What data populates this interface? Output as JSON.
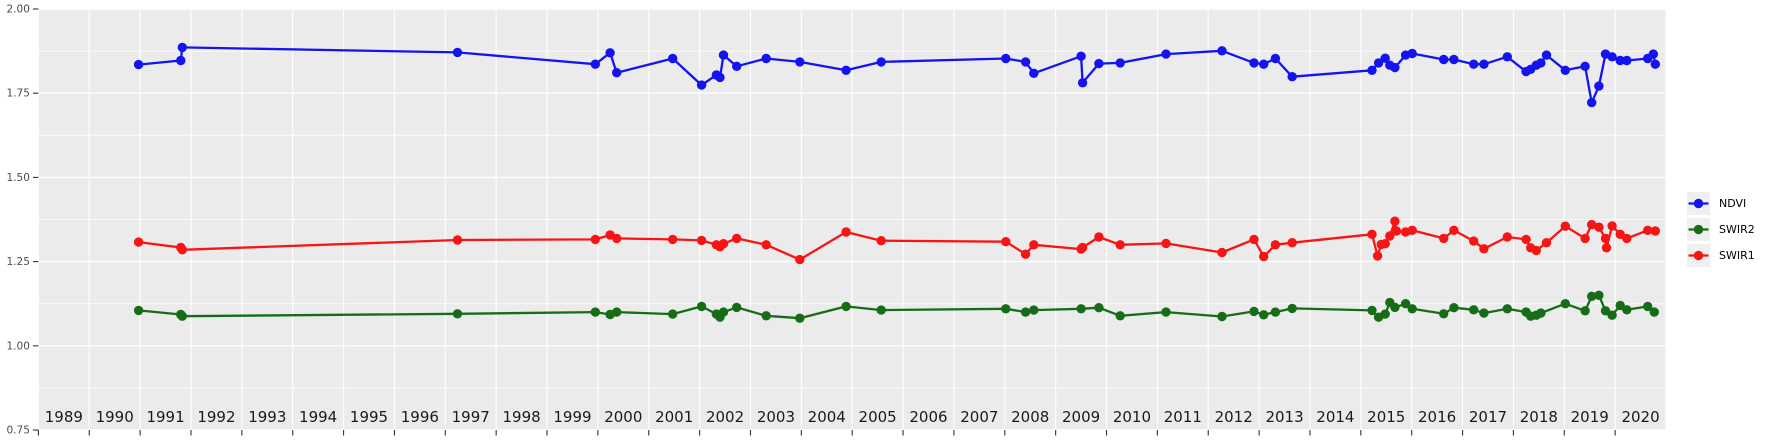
{
  "chart_data": {
    "type": "line",
    "title": "",
    "xlabel": "",
    "ylabel": "",
    "x_range": [
      1989,
      2021
    ],
    "y_range": [
      0.75,
      2.0
    ],
    "x_tick_years": [
      1989,
      1990,
      1991,
      1992,
      1993,
      1994,
      1995,
      1996,
      1997,
      1998,
      1999,
      2000,
      2001,
      2002,
      2003,
      2004,
      2005,
      2006,
      2007,
      2008,
      2009,
      2010,
      2011,
      2012,
      2013,
      2014,
      2015,
      2016,
      2017,
      2018,
      2019,
      2020
    ],
    "y_ticks": [
      0.75,
      1.0,
      1.25,
      1.5,
      1.75,
      2.0
    ],
    "y_tick_labels": [
      "0.75",
      "1.00",
      "1.25",
      "1.50",
      "1.75",
      "2.00"
    ],
    "y_major_step": 0.25,
    "y_minor_step": 0.125,
    "x_grid_step": 1,
    "grid": "on",
    "panel_color": "#EBEBEB",
    "grid_color": "#FFFFFF",
    "tick_color": "#333333",
    "x_label_color": "#1a1a1a",
    "y_label_color": "#4d4d4d",
    "legend": {
      "position": "right",
      "key_fill": "#EFEFEF",
      "entries": [
        {
          "label": "NDVI",
          "color": "#1414F0"
        },
        {
          "label": "SWIR2",
          "color": "#176D17"
        },
        {
          "label": "SWIR1",
          "color": "#F81414"
        }
      ]
    },
    "series": [
      {
        "name": "NDVI",
        "color": "#1414F0",
        "x": [
          1990.97,
          1991.8,
          1991.83,
          1997.24,
          1999.95,
          2000.24,
          2000.37,
          2001.47,
          2002.04,
          2002.33,
          2002.4,
          2002.47,
          2002.73,
          2003.31,
          2003.97,
          2004.88,
          2005.57,
          2008.02,
          2008.41,
          2008.57,
          2009.5,
          2009.53,
          2009.85,
          2010.27,
          2011.17,
          2012.27,
          2012.9,
          2013.09,
          2013.32,
          2013.65,
          2015.22,
          2015.35,
          2015.48,
          2015.57,
          2015.67,
          2015.88,
          2016.01,
          2016.63,
          2016.83,
          2017.22,
          2017.42,
          2017.88,
          2018.25,
          2018.34,
          2018.45,
          2018.54,
          2018.65,
          2019.02,
          2019.41,
          2019.54,
          2019.68,
          2019.81,
          2019.94,
          2020.1,
          2020.23,
          2020.64,
          2020.75,
          2020.79
        ],
        "y": [
          1.835,
          1.847,
          1.886,
          1.871,
          1.836,
          1.87,
          1.811,
          1.853,
          1.774,
          1.804,
          1.797,
          1.863,
          1.83,
          1.853,
          1.843,
          1.818,
          1.843,
          1.853,
          1.843,
          1.809,
          1.86,
          1.781,
          1.838,
          1.84,
          1.866,
          1.876,
          1.84,
          1.836,
          1.853,
          1.799,
          1.818,
          1.84,
          1.854,
          1.833,
          1.826,
          1.863,
          1.868,
          1.85,
          1.85,
          1.836,
          1.836,
          1.858,
          1.814,
          1.821,
          1.833,
          1.84,
          1.863,
          1.818,
          1.83,
          1.722,
          1.771,
          1.866,
          1.858,
          1.847,
          1.847,
          1.853,
          1.866,
          1.836
        ]
      },
      {
        "name": "SWIR1",
        "color": "#F81414",
        "x": [
          1990.97,
          1991.8,
          1991.83,
          1997.24,
          1999.95,
          2000.24,
          2000.37,
          2001.47,
          2002.04,
          2002.33,
          2002.4,
          2002.47,
          2002.73,
          2003.31,
          2003.97,
          2004.88,
          2005.57,
          2008.02,
          2008.41,
          2008.57,
          2009.5,
          2009.53,
          2009.85,
          2010.27,
          2011.17,
          2012.27,
          2012.9,
          2013.09,
          2013.32,
          2013.65,
          2015.22,
          2015.33,
          2015.4,
          2015.48,
          2015.57,
          2015.67,
          2015.7,
          2015.88,
          2016.01,
          2016.63,
          2016.83,
          2017.22,
          2017.42,
          2017.88,
          2018.25,
          2018.34,
          2018.45,
          2018.65,
          2019.02,
          2019.41,
          2019.54,
          2019.68,
          2019.81,
          2019.83,
          2019.94,
          2020.1,
          2020.23,
          2020.64,
          2020.79
        ],
        "y": [
          1.308,
          1.292,
          1.285,
          1.314,
          1.316,
          1.329,
          1.319,
          1.316,
          1.313,
          1.3,
          1.294,
          1.303,
          1.319,
          1.3,
          1.256,
          1.338,
          1.312,
          1.309,
          1.272,
          1.3,
          1.287,
          1.292,
          1.323,
          1.3,
          1.304,
          1.277,
          1.316,
          1.265,
          1.3,
          1.306,
          1.331,
          1.267,
          1.301,
          1.303,
          1.326,
          1.37,
          1.341,
          1.338,
          1.343,
          1.319,
          1.343,
          1.311,
          1.288,
          1.323,
          1.316,
          1.291,
          1.283,
          1.306,
          1.355,
          1.319,
          1.36,
          1.352,
          1.319,
          1.291,
          1.356,
          1.331,
          1.319,
          1.343,
          1.341
        ]
      },
      {
        "name": "SWIR2",
        "color": "#176D17",
        "x": [
          1990.97,
          1991.8,
          1991.83,
          1997.24,
          1999.95,
          2000.24,
          2000.37,
          2001.47,
          2002.04,
          2002.33,
          2002.4,
          2002.47,
          2002.73,
          2003.31,
          2003.97,
          2004.88,
          2005.57,
          2008.02,
          2008.41,
          2008.57,
          2009.5,
          2009.85,
          2010.27,
          2011.17,
          2012.27,
          2012.9,
          2013.09,
          2013.32,
          2013.65,
          2015.22,
          2015.35,
          2015.48,
          2015.57,
          2015.67,
          2015.88,
          2016.01,
          2016.63,
          2016.83,
          2017.22,
          2017.42,
          2017.88,
          2018.25,
          2018.34,
          2018.45,
          2018.54,
          2019.02,
          2019.41,
          2019.54,
          2019.68,
          2019.81,
          2019.94,
          2020.1,
          2020.23,
          2020.64,
          2020.77
        ],
        "y": [
          1.105,
          1.093,
          1.088,
          1.095,
          1.1,
          1.093,
          1.1,
          1.094,
          1.117,
          1.094,
          1.085,
          1.1,
          1.114,
          1.089,
          1.082,
          1.117,
          1.106,
          1.11,
          1.1,
          1.106,
          1.11,
          1.113,
          1.089,
          1.1,
          1.087,
          1.102,
          1.092,
          1.1,
          1.111,
          1.105,
          1.085,
          1.094,
          1.129,
          1.114,
          1.125,
          1.11,
          1.095,
          1.113,
          1.107,
          1.097,
          1.11,
          1.1,
          1.088,
          1.091,
          1.097,
          1.125,
          1.104,
          1.147,
          1.15,
          1.104,
          1.091,
          1.12,
          1.107,
          1.117,
          1.1
        ]
      }
    ]
  }
}
